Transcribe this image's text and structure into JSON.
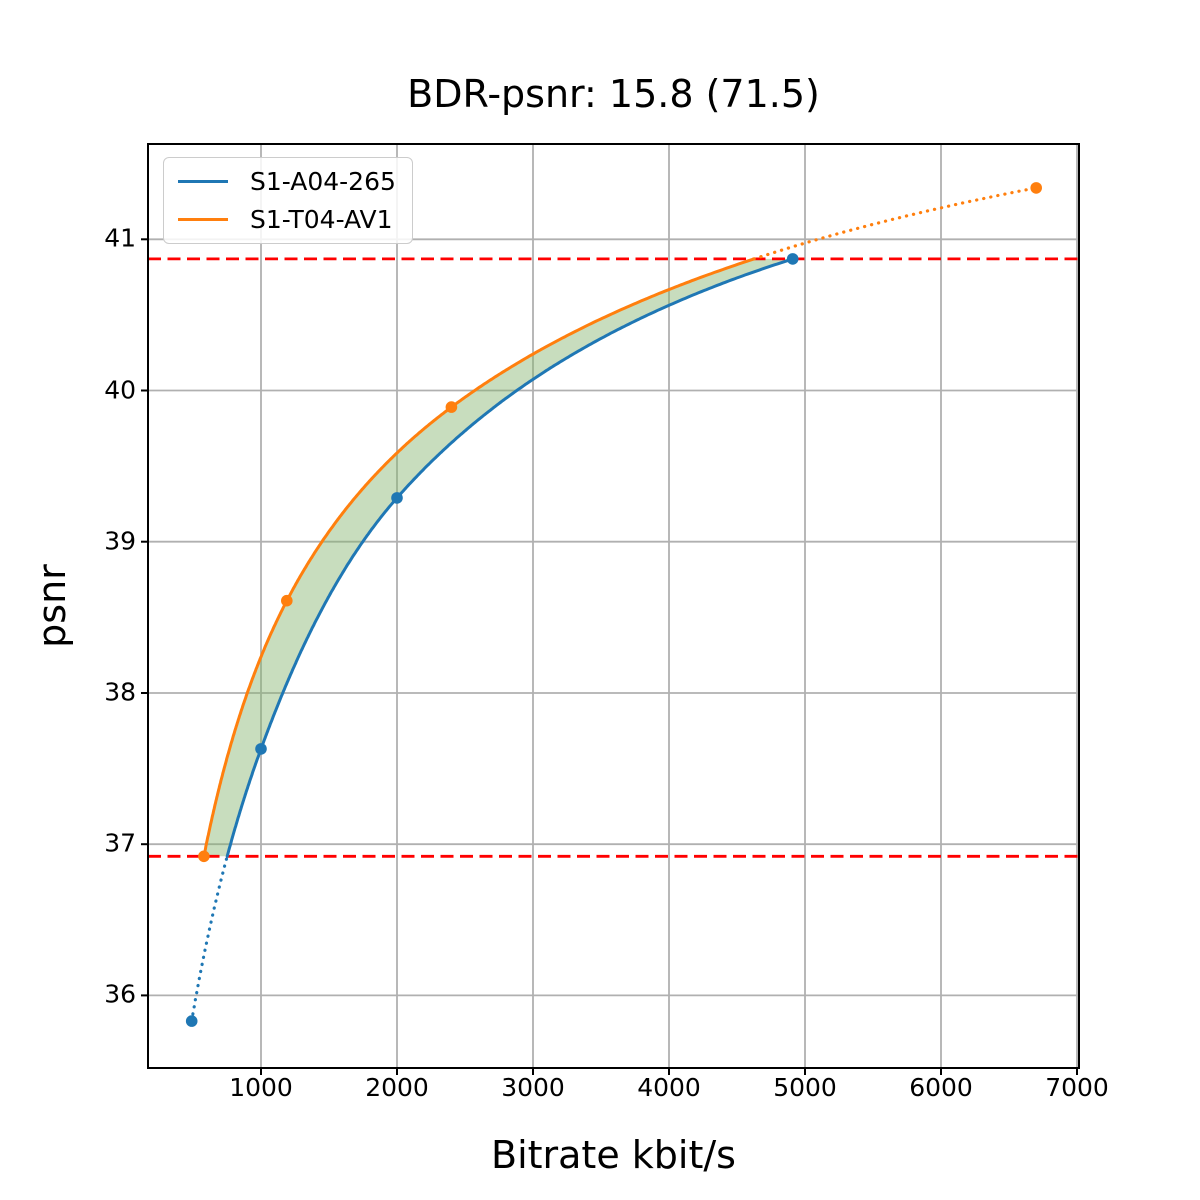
{
  "title": "BDR-psnr: 15.8 (71.5)",
  "chart_data": {
    "type": "line",
    "title": "BDR-psnr: 15.8 (71.5)",
    "xlabel": "Bitrate kbit/s",
    "ylabel": "psnr",
    "xlim": [
      169,
      7015
    ],
    "ylim": [
      35.52,
      41.63
    ],
    "x_ticks": [
      1000,
      2000,
      3000,
      4000,
      5000,
      6000,
      7000
    ],
    "y_ticks": [
      36,
      37,
      38,
      39,
      40,
      41
    ],
    "grid": true,
    "grid_color": "#b0b0b0",
    "legend_position": "upper-left",
    "interpolation": "pchip-log-x",
    "outside_overlap_style": "dotted",
    "series": [
      {
        "name": "S1-A04-265",
        "color": "#1f77b4",
        "points": [
          [
            490,
            35.83
          ],
          [
            1000,
            37.63
          ],
          [
            2000,
            39.29
          ],
          [
            4910,
            40.87
          ]
        ]
      },
      {
        "name": "S1-T04-AV1",
        "color": "#ff7f0e",
        "points": [
          [
            580,
            36.92
          ],
          [
            1190,
            38.61
          ],
          [
            2400,
            39.89
          ],
          [
            6700,
            41.34
          ]
        ]
      }
    ],
    "overlap_region": {
      "lower_psnr": 36.92,
      "upper_psnr": 40.87,
      "line_color": "#ff0000",
      "line_style": "dashed",
      "fill_color": "#86b36f",
      "fill_opacity": 0.45
    }
  }
}
